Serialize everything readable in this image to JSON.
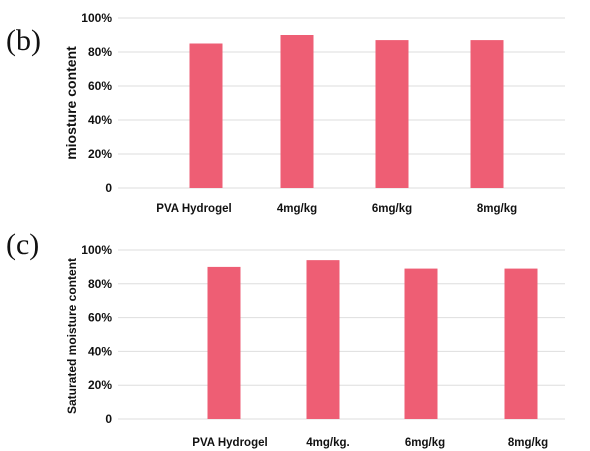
{
  "colors": {
    "bar": "#ee5e74",
    "grid": "#dedede",
    "text": "#111111"
  },
  "chart_data": [
    {
      "type": "bar",
      "panel_label": "(b)",
      "categories": [
        "PVA Hydrogel",
        "4mg/kg",
        "6mg/kg",
        "8mg/kg"
      ],
      "values": [
        85,
        90,
        87,
        87
      ],
      "ylabel": "miosture content",
      "xlabel": "",
      "ylim": [
        0,
        100
      ],
      "yticks": [
        "0",
        "20%",
        "40%",
        "60%",
        "80%",
        "100%"
      ],
      "grid": true
    },
    {
      "type": "bar",
      "panel_label": "(c)",
      "categories": [
        "PVA Hydrogel",
        "4mg/kg.",
        "6mg/kg",
        "8mg/kg"
      ],
      "values": [
        90,
        94,
        89,
        89
      ],
      "ylabel": "Saturated moisture content",
      "xlabel": "",
      "ylim": [
        0,
        100
      ],
      "yticks": [
        "0",
        "20%",
        "40%",
        "60%",
        "80%",
        "100%"
      ],
      "grid": true
    }
  ]
}
